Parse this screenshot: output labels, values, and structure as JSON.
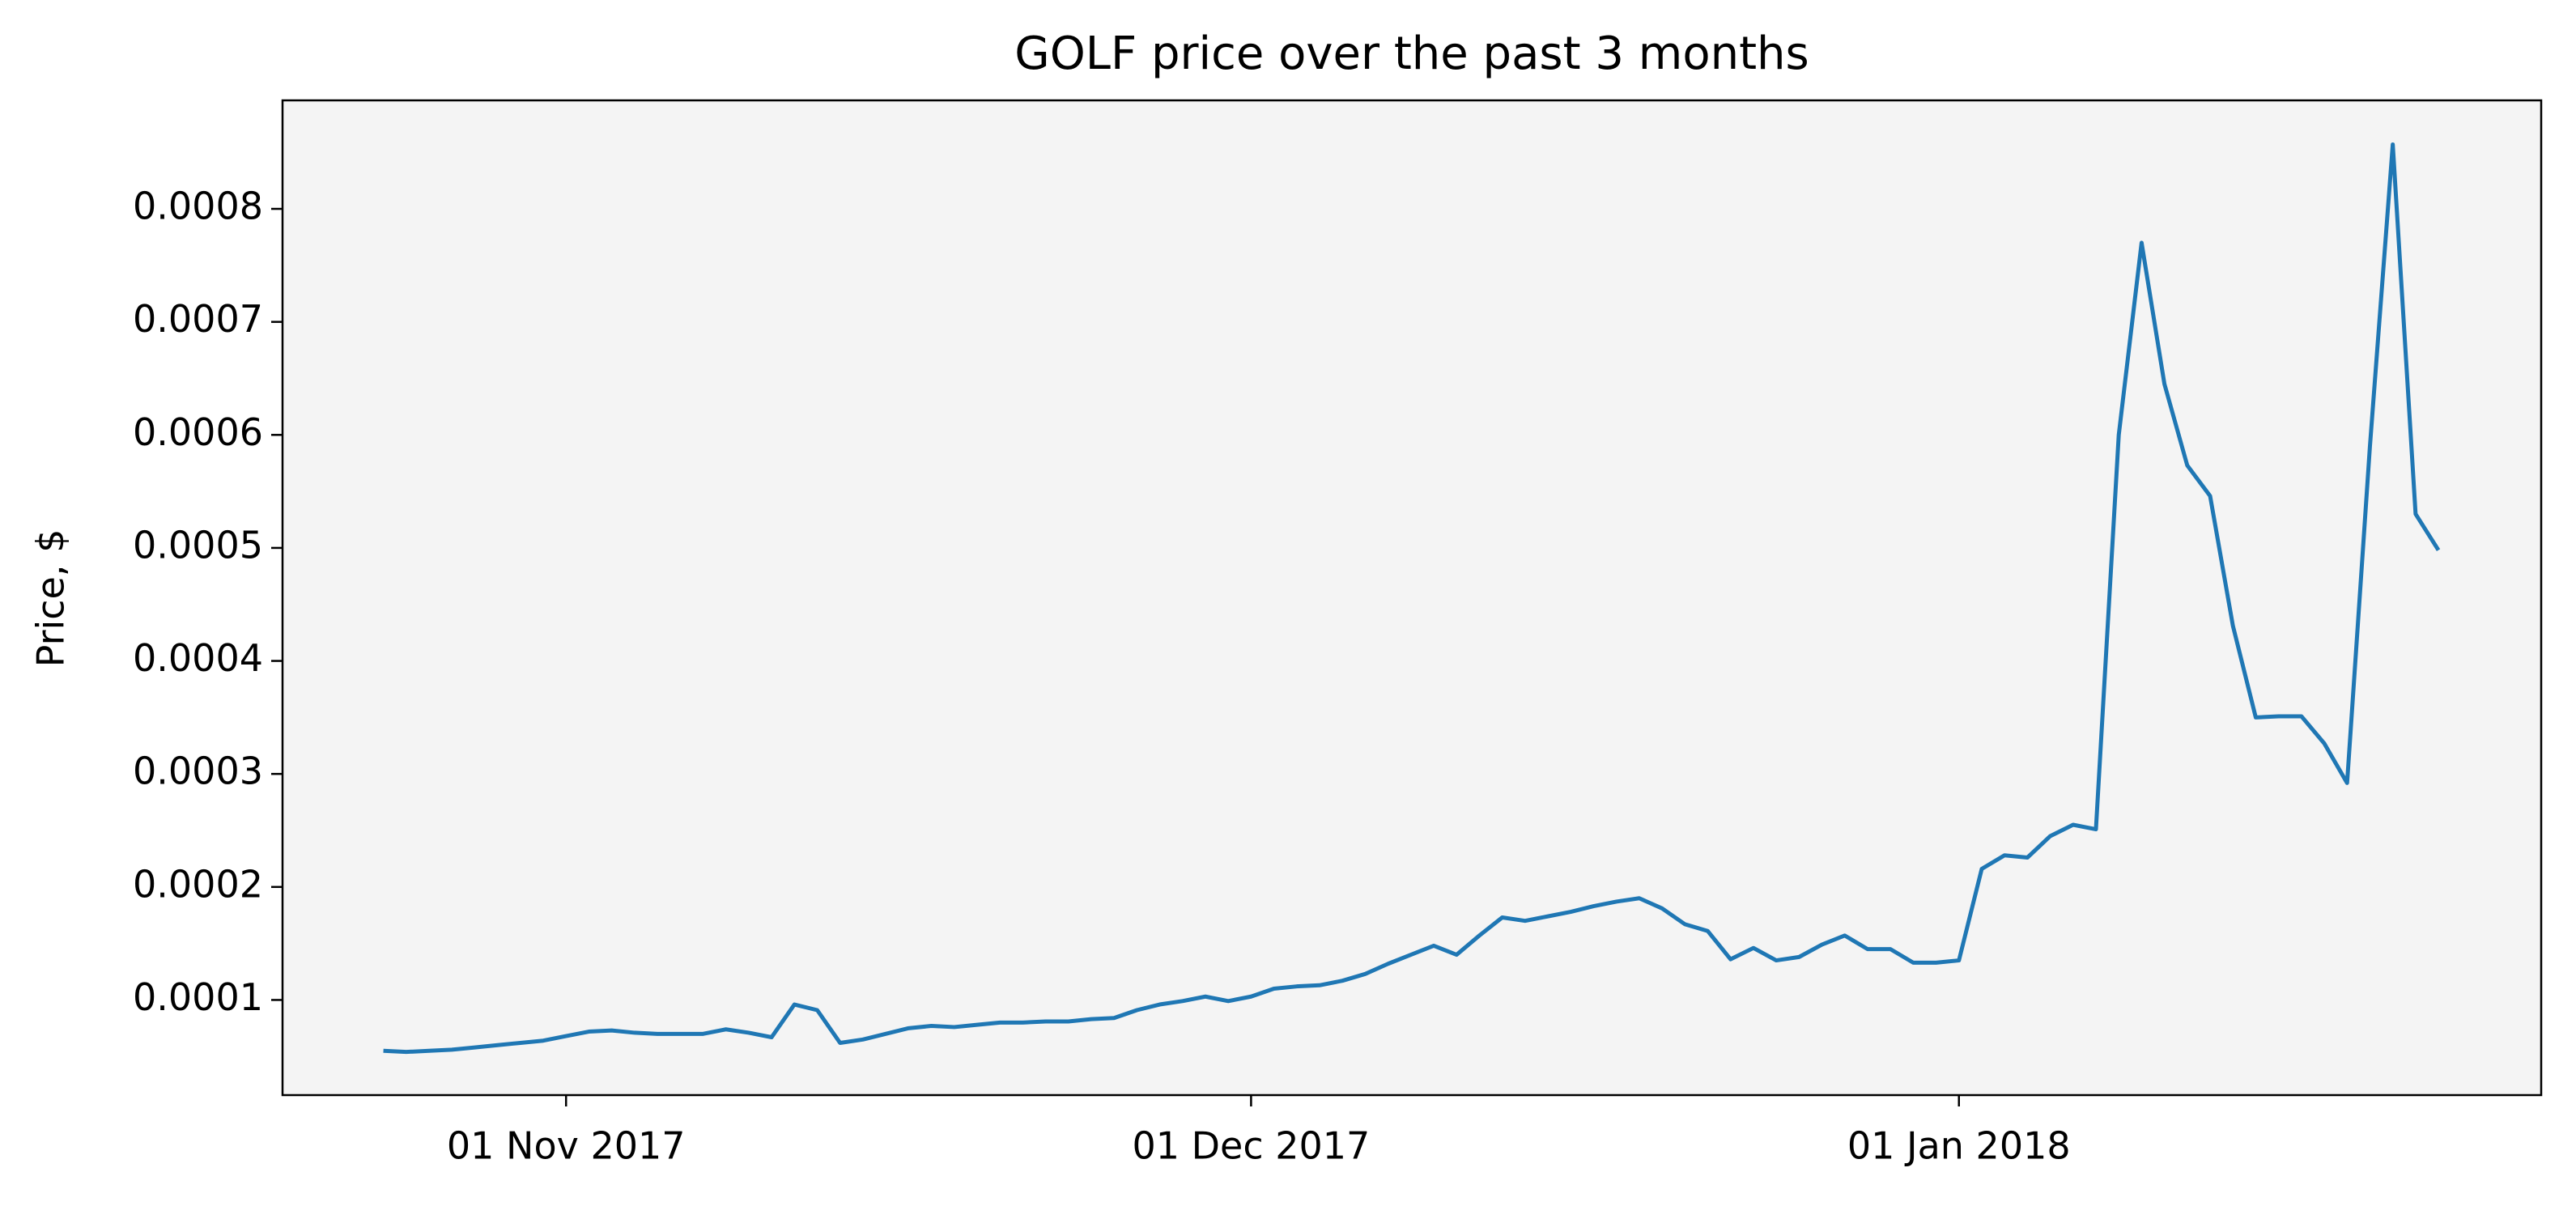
{
  "chart_data": {
    "type": "line",
    "title": "GOLF price over the past 3 months",
    "y_label": "Price, $",
    "x": [
      "2017-10-24",
      "2017-10-25",
      "2017-10-26",
      "2017-10-27",
      "2017-10-28",
      "2017-10-29",
      "2017-10-30",
      "2017-10-31",
      "2017-11-01",
      "2017-11-02",
      "2017-11-03",
      "2017-11-04",
      "2017-11-05",
      "2017-11-06",
      "2017-11-07",
      "2017-11-08",
      "2017-11-09",
      "2017-11-10",
      "2017-11-11",
      "2017-11-12",
      "2017-11-13",
      "2017-11-14",
      "2017-11-15",
      "2017-11-16",
      "2017-11-17",
      "2017-11-18",
      "2017-11-19",
      "2017-11-20",
      "2017-11-21",
      "2017-11-22",
      "2017-11-23",
      "2017-11-24",
      "2017-11-25",
      "2017-11-26",
      "2017-11-27",
      "2017-11-28",
      "2017-11-29",
      "2017-11-30",
      "2017-12-01",
      "2017-12-02",
      "2017-12-03",
      "2017-12-04",
      "2017-12-05",
      "2017-12-06",
      "2017-12-07",
      "2017-12-08",
      "2017-12-09",
      "2017-12-10",
      "2017-12-11",
      "2017-12-12",
      "2017-12-13",
      "2017-12-14",
      "2017-12-15",
      "2017-12-16",
      "2017-12-17",
      "2017-12-18",
      "2017-12-19",
      "2017-12-20",
      "2017-12-21",
      "2017-12-22",
      "2017-12-23",
      "2017-12-24",
      "2017-12-25",
      "2017-12-26",
      "2017-12-27",
      "2017-12-28",
      "2017-12-29",
      "2017-12-30",
      "2017-12-31",
      "2018-01-01",
      "2018-01-02",
      "2018-01-03",
      "2018-01-04",
      "2018-01-05",
      "2018-01-06",
      "2018-01-07",
      "2018-01-08",
      "2018-01-09",
      "2018-01-10",
      "2018-01-11",
      "2018-01-12",
      "2018-01-13",
      "2018-01-14",
      "2018-01-15",
      "2018-01-16",
      "2018-01-17",
      "2018-01-18",
      "2018-01-19",
      "2018-01-20",
      "2018-01-21",
      "2018-01-22"
    ],
    "series": [
      {
        "name": "GOLF",
        "color": "#1f77b4",
        "values": [
          5.5e-05,
          5.4e-05,
          5.5e-05,
          5.6e-05,
          5.8e-05,
          6e-05,
          6.2e-05,
          6.4e-05,
          6.8e-05,
          7.2e-05,
          7.3e-05,
          7.1e-05,
          7e-05,
          7e-05,
          7e-05,
          7.4e-05,
          7.1e-05,
          6.7e-05,
          9.6e-05,
          9.1e-05,
          6.2e-05,
          6.5e-05,
          7e-05,
          7.5e-05,
          7.7e-05,
          7.6e-05,
          7.8e-05,
          8e-05,
          8e-05,
          8.1e-05,
          8.1e-05,
          8.3e-05,
          8.4e-05,
          9.1e-05,
          9.6e-05,
          9.9e-05,
          0.000103,
          9.9e-05,
          0.000103,
          0.00011,
          0.000112,
          0.000113,
          0.000117,
          0.000123,
          0.000132,
          0.00014,
          0.000148,
          0.00014,
          0.000157,
          0.000173,
          0.00017,
          0.000174,
          0.000178,
          0.000183,
          0.000187,
          0.00019,
          0.000181,
          0.000167,
          0.000161,
          0.000136,
          0.000146,
          0.000135,
          0.000138,
          0.000149,
          0.000157,
          0.000145,
          0.000145,
          0.000133,
          0.000133,
          0.000135,
          0.000216,
          0.000228,
          0.000226,
          0.000245,
          0.000255,
          0.000251,
          0.0006,
          0.00077,
          0.000645,
          0.000573,
          0.000546,
          0.000431,
          0.00035,
          0.000351,
          0.000351,
          0.000327,
          0.000292,
          0.00059,
          0.000857,
          0.00053,
          0.000498
        ]
      }
    ],
    "xlim": [
      "2017-10-19T14:00Z",
      "2018-01-26T12:00Z"
    ],
    "xticks": [
      {
        "value": "2017-11-01",
        "label": "01 Nov 2017"
      },
      {
        "value": "2017-12-01",
        "label": "01 Dec 2017"
      },
      {
        "value": "2018-01-01",
        "label": "01 Jan 2018"
      }
    ],
    "ylim": [
      1.58e-05,
      0.000896
    ],
    "yticks": [
      0.0001,
      0.0002,
      0.0003,
      0.0004,
      0.0005,
      0.0006,
      0.0007,
      0.0008
    ],
    "grid": false
  }
}
